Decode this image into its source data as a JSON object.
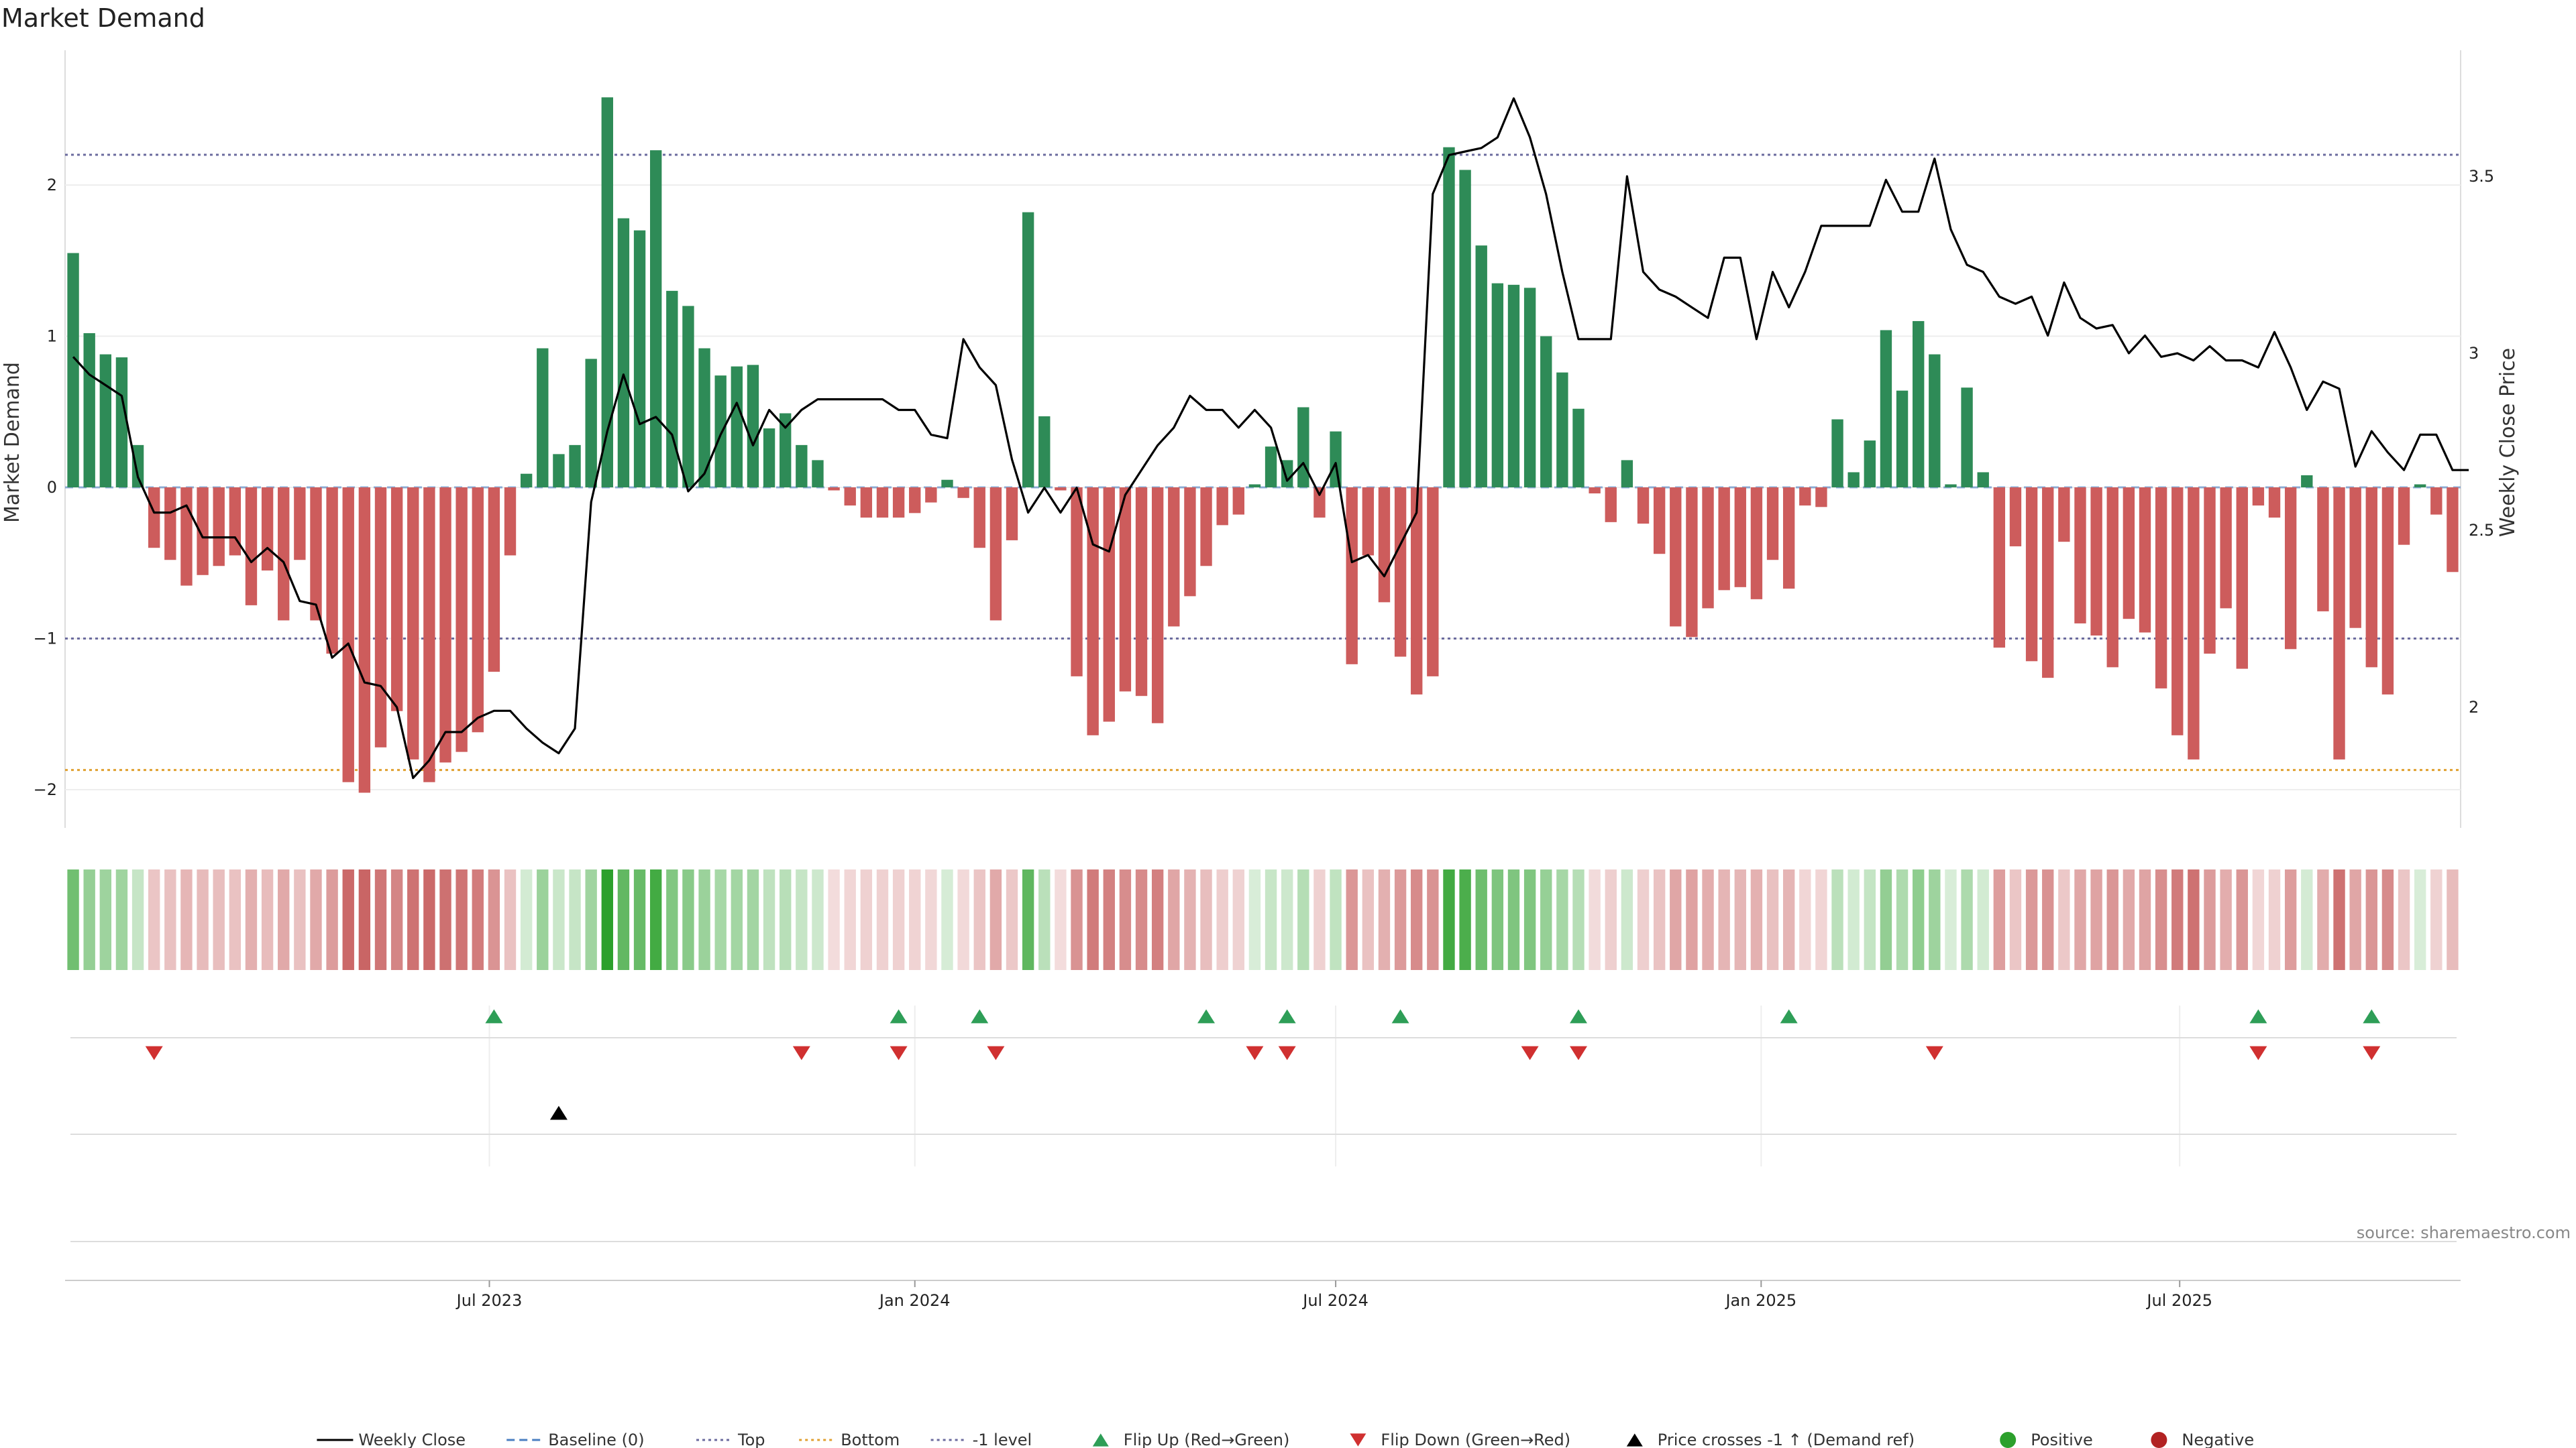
{
  "chart_data": {
    "type": "bar",
    "title": "Market Demand",
    "ylabel": "Market Demand",
    "y2label": "Weekly Close Price",
    "source": "source: sharemaestro.com",
    "x_start": "2023-01-02",
    "x_ticks": [
      {
        "date": "2023-07-01",
        "label": "Jul 2023"
      },
      {
        "date": "2024-01-01",
        "label": "Jan 2024"
      },
      {
        "date": "2024-07-01",
        "label": "Jul 2024"
      },
      {
        "date": "2025-01-01",
        "label": "Jan 2025"
      },
      {
        "date": "2025-07-01",
        "label": "Jul 2025"
      }
    ],
    "ylim": [
      -2.25,
      2.85
    ],
    "y_ticks": [
      -2,
      -1,
      0,
      1,
      2
    ],
    "y2lim": [
      1.75,
      3.8
    ],
    "y2_ticks": [
      2,
      2.5,
      3,
      3.5
    ],
    "levels": {
      "top": 2.2,
      "bottom": -1.87,
      "minus_one": -1.0
    },
    "demand": [
      1.55,
      1.02,
      0.88,
      0.86,
      0.28,
      -0.4,
      -0.48,
      -0.65,
      -0.58,
      -0.52,
      -0.45,
      -0.78,
      -0.55,
      -0.88,
      -0.48,
      -0.88,
      -1.1,
      -1.95,
      -2.02,
      -1.72,
      -1.48,
      -1.8,
      -1.95,
      -1.82,
      -1.75,
      -1.62,
      -1.22,
      -0.45,
      0.09,
      0.92,
      0.22,
      0.28,
      0.85,
      2.58,
      1.78,
      1.7,
      2.23,
      1.3,
      1.2,
      0.92,
      0.74,
      0.8,
      0.81,
      0.39,
      0.49,
      0.28,
      0.18,
      -0.02,
      -0.12,
      -0.2,
      -0.2,
      -0.2,
      -0.17,
      -0.1,
      0.05,
      -0.07,
      -0.4,
      -0.88,
      -0.35,
      1.82,
      0.47,
      -0.02,
      -1.25,
      -1.64,
      -1.55,
      -1.35,
      -1.38,
      -1.56,
      -0.92,
      -0.72,
      -0.52,
      -0.25,
      -0.18,
      0.02,
      0.27,
      0.18,
      0.53,
      -0.2,
      0.37,
      -1.17,
      -0.45,
      -0.76,
      -1.12,
      -1.37,
      -1.25,
      2.25,
      2.1,
      1.6,
      1.35,
      1.34,
      1.32,
      1.0,
      0.76,
      0.52,
      -0.04,
      -0.23,
      0.18,
      -0.24,
      -0.44,
      -0.92,
      -0.99,
      -0.8,
      -0.68,
      -0.66,
      -0.74,
      -0.48,
      -0.67,
      -0.12,
      -0.13,
      0.45,
      0.1,
      0.31,
      1.04,
      0.64,
      1.1,
      0.88,
      0.02,
      0.66,
      0.1,
      -1.06,
      -0.39,
      -1.15,
      -1.26,
      -0.36,
      -0.9,
      -0.98,
      -1.19,
      -0.87,
      -0.96,
      -1.33,
      -1.64,
      -1.8,
      -1.1,
      -0.8,
      -1.2,
      -0.12,
      -0.2,
      -1.07,
      0.08,
      -0.82,
      -1.8,
      -0.93,
      -1.19,
      -1.37,
      -0.38,
      0.02,
      -0.18,
      -0.56
    ],
    "price": [
      2.99,
      2.94,
      2.91,
      2.88,
      2.65,
      2.55,
      2.55,
      2.57,
      2.48,
      2.48,
      2.48,
      2.41,
      2.45,
      2.41,
      2.3,
      2.29,
      2.14,
      2.18,
      2.07,
      2.06,
      2.0,
      1.8,
      1.85,
      1.93,
      1.93,
      1.97,
      1.99,
      1.99,
      1.94,
      1.9,
      1.87,
      1.94,
      2.58,
      2.78,
      2.94,
      2.8,
      2.82,
      2.77,
      2.61,
      2.66,
      2.77,
      2.86,
      2.74,
      2.84,
      2.79,
      2.84,
      2.87,
      2.87,
      2.87,
      2.87,
      2.87,
      2.84,
      2.84,
      2.77,
      2.76,
      3.04,
      2.96,
      2.91,
      2.7,
      2.55,
      2.62,
      2.55,
      2.62,
      2.46,
      2.44,
      2.6,
      2.67,
      2.74,
      2.79,
      2.88,
      2.84,
      2.84,
      2.79,
      2.84,
      2.79,
      2.64,
      2.69,
      2.6,
      2.69,
      2.41,
      2.43,
      2.37,
      2.46,
      2.55,
      3.45,
      3.56,
      3.57,
      3.58,
      3.61,
      3.72,
      3.61,
      3.45,
      3.23,
      3.04,
      3.04,
      3.04,
      3.5,
      3.23,
      3.18,
      3.16,
      3.13,
      3.1,
      3.27,
      3.27,
      3.04,
      3.23,
      3.13,
      3.23,
      3.36,
      3.36,
      3.36,
      3.36,
      3.49,
      3.4,
      3.4,
      3.55,
      3.35,
      3.25,
      3.23,
      3.16,
      3.14,
      3.16,
      3.05,
      3.2,
      3.1,
      3.07,
      3.08,
      3.0,
      3.05,
      2.99,
      3.0,
      2.98,
      3.02,
      2.98,
      2.98,
      2.96,
      3.06,
      2.96,
      2.84,
      2.92,
      2.9,
      2.68,
      2.78,
      2.72,
      2.67,
      2.77,
      2.77,
      2.67,
      2.67
    ],
    "flip_up_weeks": [
      26,
      51,
      56,
      70,
      75,
      82,
      93,
      106,
      135,
      142
    ],
    "flip_down_weeks": [
      5,
      45,
      51,
      57,
      73,
      75,
      90,
      93,
      115,
      135,
      142
    ],
    "cross_weeks": [
      30
    ],
    "legend": [
      {
        "label": "Weekly Close",
        "kind": "line",
        "color": "#000000"
      },
      {
        "label": "Baseline (0)",
        "kind": "dash",
        "color": "#4a7fc1"
      },
      {
        "label": "Top",
        "kind": "dot",
        "color": "#6b6b9e"
      },
      {
        "label": "Bottom",
        "kind": "dot",
        "color": "#e0a030"
      },
      {
        "label": "-1 level",
        "kind": "dot",
        "color": "#6b6b9e"
      },
      {
        "label": "Flip Up (Red→Green)",
        "kind": "tri-up",
        "color": "#2e9e57"
      },
      {
        "label": "Flip Down (Green→Red)",
        "kind": "tri-down",
        "color": "#d03030"
      },
      {
        "label": "Price crosses -1 ↑ (Demand ref)",
        "kind": "tri-up",
        "color": "#000000"
      },
      {
        "label": "Positive",
        "kind": "circle",
        "color": "#2ca02c"
      },
      {
        "label": "Negative",
        "kind": "circle",
        "color": "#b22222"
      }
    ],
    "colors": {
      "positive": "#2e8b57",
      "negative": "#cd5c5c",
      "price": "#000000",
      "flip_up": "#2e9e57",
      "flip_down": "#d03030",
      "cross": "#000000"
    }
  }
}
